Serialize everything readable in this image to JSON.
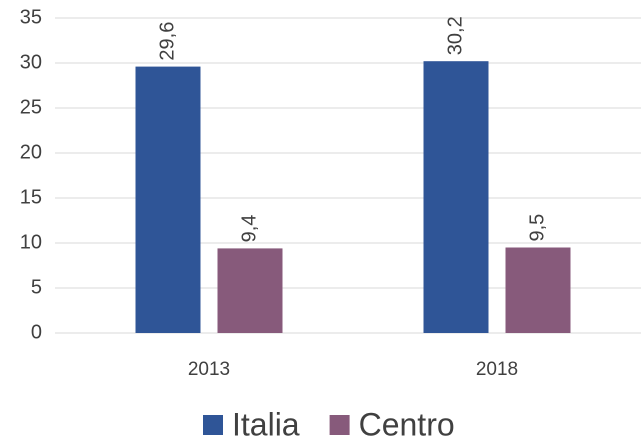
{
  "chart_data": {
    "type": "bar",
    "categories": [
      "2013",
      "2018"
    ],
    "series": [
      {
        "name": "Italia",
        "color": "#2f5597",
        "values": [
          29.6,
          30.2
        ],
        "value_labels": [
          "29,6",
          "30,2"
        ]
      },
      {
        "name": "Centro",
        "color": "#875a7b",
        "values": [
          9.4,
          9.5
        ],
        "value_labels": [
          "9,4",
          "9,5"
        ]
      }
    ],
    "ylim": [
      0,
      35
    ],
    "yticks": [
      0,
      5,
      10,
      15,
      20,
      25,
      30,
      35
    ],
    "grid": true,
    "legend": "bottom"
  }
}
